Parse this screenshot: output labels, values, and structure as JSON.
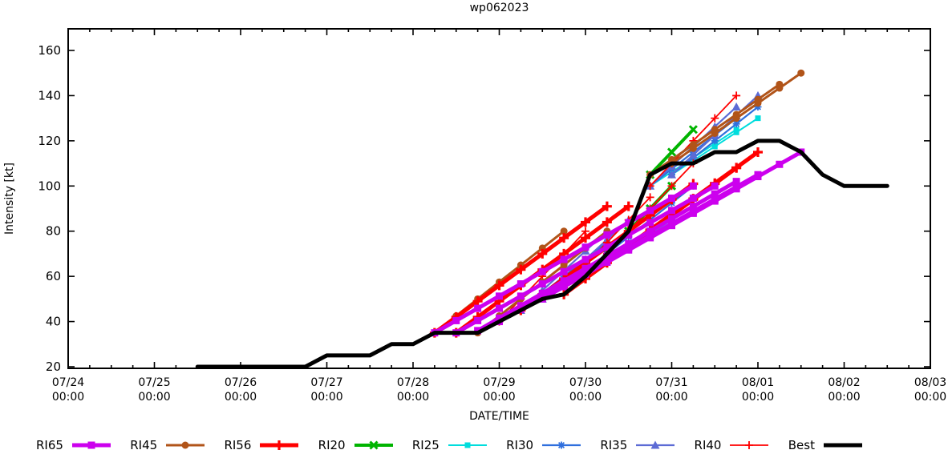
{
  "title": "wp062023",
  "axes": {
    "x_label": "DATE/TIME",
    "y_label": "Intensity [kt]",
    "y_ticks": [
      20,
      40,
      60,
      80,
      100,
      120,
      140,
      160
    ],
    "x_ticks": [
      {
        "date": "07/24",
        "time": "00:00"
      },
      {
        "date": "07/25",
        "time": "00:00"
      },
      {
        "date": "07/26",
        "time": "00:00"
      },
      {
        "date": "07/27",
        "time": "00:00"
      },
      {
        "date": "07/28",
        "time": "00:00"
      },
      {
        "date": "07/29",
        "time": "00:00"
      },
      {
        "date": "07/30",
        "time": "00:00"
      },
      {
        "date": "07/31",
        "time": "00:00"
      },
      {
        "date": "08/01",
        "time": "00:00"
      },
      {
        "date": "08/02",
        "time": "00:00"
      },
      {
        "date": "08/03",
        "time": "00:00"
      }
    ]
  },
  "chart_data": {
    "type": "line",
    "title": "wp062023",
    "xlabel": "DATE/TIME",
    "ylabel": "Intensity [kt]",
    "ylim": [
      20,
      170
    ],
    "y_tick_interval": 20,
    "x_range": [
      "07/24 00:00",
      "08/03 00:00"
    ],
    "x_unit": "hours since 07/24 00:00",
    "x_major_tick_hours": 24,
    "x_minor_tick_hours": 6,
    "marker_interval_hours": 6,
    "grid": "off",
    "legend_position": "bottom",
    "series": [
      {
        "name": "RI65",
        "color": "#cc00ee",
        "marker": "square",
        "width": 5,
        "z": 8,
        "runs": [
          [
            102,
            35,
            174,
            100
          ],
          [
            108,
            35,
            180,
            100
          ],
          [
            114,
            36,
            186,
            102
          ],
          [
            120,
            40,
            192,
            105
          ],
          [
            132,
            50,
            204,
            115
          ]
        ]
      },
      {
        "name": "RI45",
        "color": "#b15419",
        "marker": "circle",
        "width": 3,
        "z": 6,
        "runs": [
          [
            102,
            35,
            138,
            80
          ],
          [
            114,
            35,
            150,
            80
          ],
          [
            162,
            105,
            198,
            145
          ],
          [
            168,
            110,
            204,
            150
          ]
        ]
      },
      {
        "name": "RI56",
        "color": "#ff0000",
        "marker": "plus-bold",
        "width": 5,
        "z": 7,
        "runs": [
          [
            102,
            35,
            150,
            91
          ],
          [
            108,
            35,
            156,
            91
          ],
          [
            126,
            45,
            174,
            101
          ],
          [
            138,
            52,
            186,
            108
          ],
          [
            144,
            60,
            192,
            115
          ]
        ]
      },
      {
        "name": "RI20",
        "color": "#00b400",
        "marker": "cross-bold",
        "width": 4,
        "z": 1,
        "runs": [
          [
            150,
            70,
            162,
            90
          ],
          [
            156,
            80,
            168,
            100
          ],
          [
            162,
            105,
            174,
            125
          ]
        ]
      },
      {
        "name": "RI25",
        "color": "#00dddd",
        "marker": "square-small",
        "width": 2,
        "z": 2,
        "runs": [
          [
            120,
            40,
            144,
            65
          ],
          [
            144,
            60,
            168,
            85
          ],
          [
            162,
            100,
            186,
            125
          ],
          [
            168,
            105,
            192,
            130
          ]
        ]
      },
      {
        "name": "RI30",
        "color": "#2f6fdd",
        "marker": "star",
        "width": 2.2,
        "z": 3,
        "runs": [
          [
            126,
            45,
            150,
            75
          ],
          [
            150,
            70,
            174,
            100
          ],
          [
            162,
            100,
            186,
            130
          ],
          [
            168,
            105,
            192,
            135
          ]
        ]
      },
      {
        "name": "RI35",
        "color": "#5c6bd5",
        "marker": "triangle",
        "width": 2.2,
        "z": 4,
        "runs": [
          [
            126,
            45,
            150,
            80
          ],
          [
            132,
            50,
            156,
            85
          ],
          [
            162,
            100,
            186,
            135
          ],
          [
            168,
            105,
            192,
            140
          ]
        ]
      },
      {
        "name": "RI40",
        "color": "#ff0000",
        "marker": "plus-thin",
        "width": 1.8,
        "z": 5,
        "runs": [
          [
            120,
            40,
            144,
            80
          ],
          [
            138,
            55,
            162,
            95
          ],
          [
            150,
            70,
            174,
            110
          ],
          [
            162,
            100,
            186,
            140
          ]
        ]
      },
      {
        "name": "Best",
        "color": "#000000",
        "marker": "none",
        "width": 5,
        "z": 9,
        "points": [
          [
            36,
            20
          ],
          [
            66,
            20
          ],
          [
            72,
            25
          ],
          [
            84,
            25
          ],
          [
            90,
            30
          ],
          [
            96,
            30
          ],
          [
            102,
            35
          ],
          [
            114,
            35
          ],
          [
            120,
            40
          ],
          [
            126,
            45
          ],
          [
            132,
            50
          ],
          [
            138,
            52
          ],
          [
            144,
            60
          ],
          [
            150,
            70
          ],
          [
            156,
            80
          ],
          [
            162,
            105
          ],
          [
            168,
            110
          ],
          [
            174,
            110
          ],
          [
            180,
            115
          ],
          [
            186,
            115
          ],
          [
            192,
            120
          ],
          [
            198,
            120
          ],
          [
            204,
            115
          ],
          [
            210,
            105
          ],
          [
            216,
            100
          ],
          [
            228,
            100
          ]
        ]
      }
    ]
  }
}
